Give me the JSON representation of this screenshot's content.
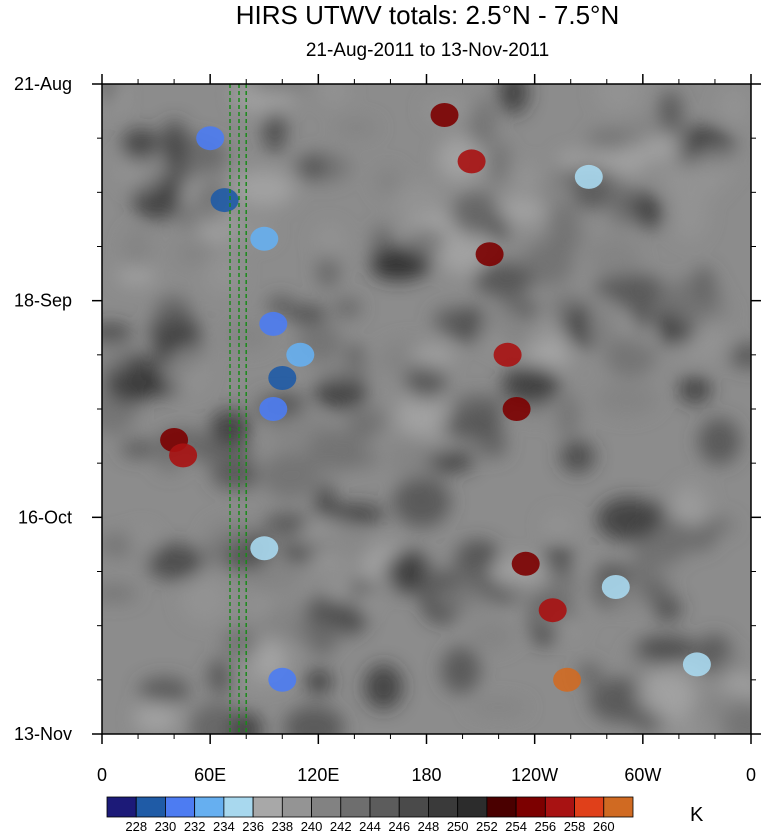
{
  "chart_data": {
    "type": "heatmap",
    "title": "HIRS UTWV totals: 2.5°N - 7.5°N",
    "subtitle": "21-Aug-2011 to 13-Nov-2011",
    "units": "K",
    "x_ticks": [
      "0",
      "60E",
      "120E",
      "180",
      "120W",
      "60W",
      "0"
    ],
    "x_tick_values": [
      0,
      60,
      120,
      180,
      240,
      300,
      360
    ],
    "y_ticks": [
      "21-Aug",
      "18-Sep",
      "16-Oct",
      "13-Nov"
    ],
    "y_tick_values": [
      "2011-08-21",
      "2011-09-18",
      "2011-10-16",
      "2011-11-13"
    ],
    "xlim": [
      0,
      360
    ],
    "ylim": [
      "2011-08-21",
      "2011-11-13"
    ],
    "reference_lines_lon": [
      71,
      76,
      80
    ],
    "reference_line_color": "#1a8a1a",
    "colorbar": {
      "levels": [
        "228",
        "230",
        "232",
        "234",
        "236",
        "238",
        "240",
        "242",
        "244",
        "246",
        "248",
        "250",
        "252",
        "254",
        "256",
        "258",
        "260"
      ],
      "colors": [
        "#1c1a78",
        "#1f5ba6",
        "#4d7cf2",
        "#66aff0",
        "#a8d8ee",
        "#a8a8a8",
        "#949494",
        "#828282",
        "#6e6e6e",
        "#5c5c5c",
        "#4a4a4a",
        "#3a3a3a",
        "#2c2c2c",
        "#4a0000",
        "#7c0000",
        "#a81212",
        "#e0401a",
        "#d06a22"
      ]
    },
    "features": [
      {
        "lon": 40,
        "date": "2011-10-06",
        "value": 254
      },
      {
        "lon": 45,
        "date": "2011-10-08",
        "value": 256
      },
      {
        "lon": 60,
        "date": "2011-08-28",
        "value": 230
      },
      {
        "lon": 68,
        "date": "2011-09-05",
        "value": 228
      },
      {
        "lon": 90,
        "date": "2011-09-10",
        "value": 232
      },
      {
        "lon": 95,
        "date": "2011-09-21",
        "value": 230
      },
      {
        "lon": 100,
        "date": "2011-09-28",
        "value": 228
      },
      {
        "lon": 110,
        "date": "2011-09-25",
        "value": 232
      },
      {
        "lon": 95,
        "date": "2011-10-02",
        "value": 230
      },
      {
        "lon": 100,
        "date": "2011-11-06",
        "value": 230
      },
      {
        "lon": 90,
        "date": "2011-10-20",
        "value": 234
      },
      {
        "lon": 190,
        "date": "2011-08-25",
        "value": 254
      },
      {
        "lon": 205,
        "date": "2011-08-31",
        "value": 256
      },
      {
        "lon": 215,
        "date": "2011-09-12",
        "value": 254
      },
      {
        "lon": 225,
        "date": "2011-09-25",
        "value": 256
      },
      {
        "lon": 230,
        "date": "2011-10-02",
        "value": 254
      },
      {
        "lon": 235,
        "date": "2011-10-22",
        "value": 254
      },
      {
        "lon": 250,
        "date": "2011-10-28",
        "value": 256
      },
      {
        "lon": 258,
        "date": "2011-11-06",
        "value": 260
      },
      {
        "lon": 285,
        "date": "2011-10-25",
        "value": 234
      },
      {
        "lon": 330,
        "date": "2011-11-04",
        "value": 234
      },
      {
        "lon": 270,
        "date": "2011-09-02",
        "value": 234
      }
    ]
  }
}
